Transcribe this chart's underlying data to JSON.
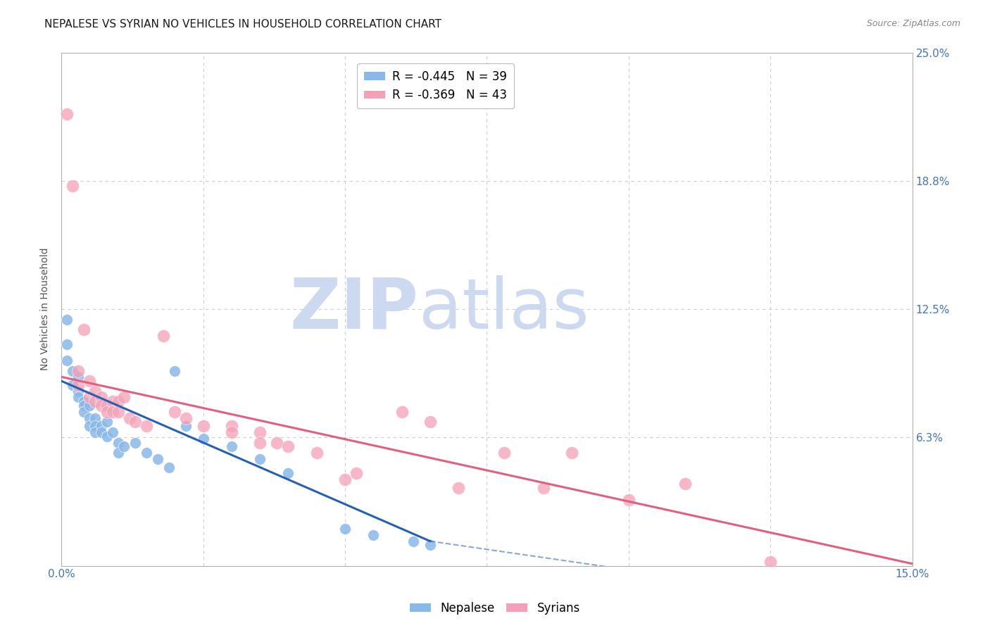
{
  "title": "NEPALESE VS SYRIAN NO VEHICLES IN HOUSEHOLD CORRELATION CHART",
  "source": "Source: ZipAtlas.com",
  "ylabel": "No Vehicles in Household",
  "y_ticks": [
    0.0,
    0.0625,
    0.125,
    0.1875,
    0.25
  ],
  "y_tick_labels_right": [
    "",
    "6.3%",
    "12.5%",
    "18.8%",
    "25.0%"
  ],
  "xlim": [
    0.0,
    0.15
  ],
  "ylim": [
    0.0,
    0.25
  ],
  "legend_entries": [
    {
      "label": "R = -0.445   N = 39",
      "color": "#8ab8e8"
    },
    {
      "label": "R = -0.369   N = 43",
      "color": "#f4a0b8"
    }
  ],
  "legend_label_nepalese": "Nepalese",
  "legend_label_syrians": "Syrians",
  "watermark_zip": "ZIP",
  "watermark_atlas": "atlas",
  "watermark_color": "#ccd9ee",
  "nepalese_color": "#8ab8e8",
  "syrian_color": "#f4a0b8",
  "nepalese_line_color": "#2860b0",
  "syrian_line_color": "#e06080",
  "nepalese_scatter": [
    [
      0.001,
      0.12
    ],
    [
      0.001,
      0.108
    ],
    [
      0.001,
      0.1
    ],
    [
      0.002,
      0.095
    ],
    [
      0.002,
      0.088
    ],
    [
      0.003,
      0.092
    ],
    [
      0.003,
      0.085
    ],
    [
      0.003,
      0.082
    ],
    [
      0.004,
      0.08
    ],
    [
      0.004,
      0.078
    ],
    [
      0.004,
      0.075
    ],
    [
      0.005,
      0.078
    ],
    [
      0.005,
      0.072
    ],
    [
      0.005,
      0.068
    ],
    [
      0.006,
      0.072
    ],
    [
      0.006,
      0.068
    ],
    [
      0.006,
      0.065
    ],
    [
      0.007,
      0.068
    ],
    [
      0.007,
      0.065
    ],
    [
      0.008,
      0.07
    ],
    [
      0.008,
      0.063
    ],
    [
      0.009,
      0.065
    ],
    [
      0.01,
      0.06
    ],
    [
      0.01,
      0.055
    ],
    [
      0.011,
      0.058
    ],
    [
      0.013,
      0.06
    ],
    [
      0.015,
      0.055
    ],
    [
      0.017,
      0.052
    ],
    [
      0.019,
      0.048
    ],
    [
      0.02,
      0.095
    ],
    [
      0.022,
      0.068
    ],
    [
      0.025,
      0.062
    ],
    [
      0.03,
      0.058
    ],
    [
      0.035,
      0.052
    ],
    [
      0.04,
      0.045
    ],
    [
      0.05,
      0.018
    ],
    [
      0.055,
      0.015
    ],
    [
      0.062,
      0.012
    ],
    [
      0.065,
      0.01
    ]
  ],
  "syrian_scatter": [
    [
      0.001,
      0.22
    ],
    [
      0.002,
      0.185
    ],
    [
      0.003,
      0.095
    ],
    [
      0.003,
      0.088
    ],
    [
      0.004,
      0.115
    ],
    [
      0.005,
      0.09
    ],
    [
      0.005,
      0.082
    ],
    [
      0.006,
      0.085
    ],
    [
      0.006,
      0.08
    ],
    [
      0.007,
      0.082
    ],
    [
      0.007,
      0.078
    ],
    [
      0.008,
      0.078
    ],
    [
      0.008,
      0.075
    ],
    [
      0.009,
      0.08
    ],
    [
      0.009,
      0.075
    ],
    [
      0.01,
      0.08
    ],
    [
      0.01,
      0.075
    ],
    [
      0.011,
      0.082
    ],
    [
      0.012,
      0.072
    ],
    [
      0.013,
      0.07
    ],
    [
      0.015,
      0.068
    ],
    [
      0.018,
      0.112
    ],
    [
      0.02,
      0.075
    ],
    [
      0.022,
      0.072
    ],
    [
      0.025,
      0.068
    ],
    [
      0.03,
      0.068
    ],
    [
      0.03,
      0.065
    ],
    [
      0.035,
      0.065
    ],
    [
      0.035,
      0.06
    ],
    [
      0.038,
      0.06
    ],
    [
      0.04,
      0.058
    ],
    [
      0.045,
      0.055
    ],
    [
      0.05,
      0.042
    ],
    [
      0.052,
      0.045
    ],
    [
      0.06,
      0.075
    ],
    [
      0.065,
      0.07
    ],
    [
      0.07,
      0.038
    ],
    [
      0.078,
      0.055
    ],
    [
      0.085,
      0.038
    ],
    [
      0.09,
      0.055
    ],
    [
      0.1,
      0.032
    ],
    [
      0.11,
      0.04
    ],
    [
      0.125,
      0.002
    ]
  ],
  "nepalese_trendline_solid": [
    [
      0.0,
      0.09
    ],
    [
      0.065,
      0.012
    ]
  ],
  "nepalese_trendline_dashed": [
    [
      0.065,
      0.012
    ],
    [
      0.15,
      -0.022
    ]
  ],
  "syrian_trendline": [
    [
      0.0,
      0.092
    ],
    [
      0.15,
      0.001
    ]
  ],
  "title_fontsize": 11,
  "source_fontsize": 9,
  "axis_label_fontsize": 10,
  "tick_fontsize": 11,
  "legend_fontsize": 12,
  "background_color": "#ffffff",
  "grid_color": "#cccccc",
  "tick_color": "#4472c4",
  "border_color": "#b0b0b0"
}
